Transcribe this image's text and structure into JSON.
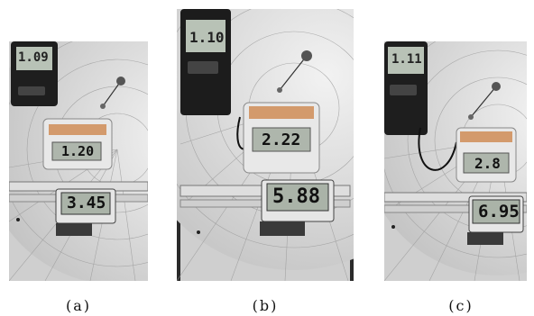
{
  "panels": [
    {
      "id": "a",
      "caption": "(a)",
      "meter_reading": "1.09",
      "gauge_reading": "1.20",
      "caliper_reading": "3.45"
    },
    {
      "id": "b",
      "caption": "(b)",
      "meter_reading": "1.10",
      "gauge_reading": "2.22",
      "caliper_reading": "5.88"
    },
    {
      "id": "c",
      "caption": "(c)",
      "meter_reading": "1.11",
      "gauge_reading": "2.8",
      "caliper_reading": "6.95"
    }
  ]
}
